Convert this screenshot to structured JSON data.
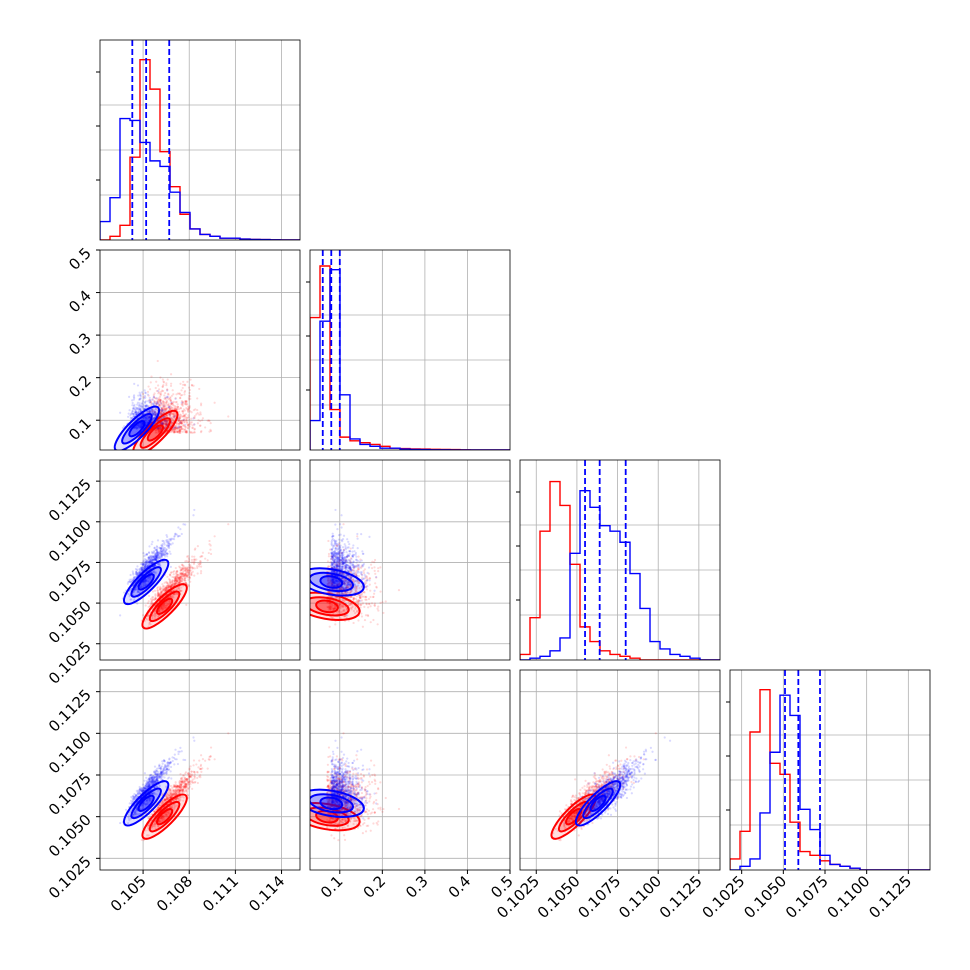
{
  "chart_data": {
    "type": "scatter",
    "subtype": "corner-plot",
    "grid": true,
    "colors": {
      "series_a": "#0000ff",
      "series_b": "#ff0000"
    },
    "quantile_lines": {
      "style": "dashed",
      "color": "#0000ff"
    },
    "variables": [
      {
        "range": [
          0.1022,
          0.1152
        ],
        "ticks": [
          0.105,
          0.108,
          0.111,
          0.114
        ],
        "tick_labels": [
          "0.105",
          "0.108",
          "0.111",
          "0.114"
        ]
      },
      {
        "range": [
          0.03,
          0.5
        ],
        "ticks": [
          0.1,
          0.2,
          0.3,
          0.4,
          0.5
        ],
        "tick_labels": [
          "0.1",
          "0.2",
          "0.3",
          "0.4",
          "0.5"
        ]
      },
      {
        "range": [
          0.1015,
          0.1138
        ],
        "ticks": [
          0.1025,
          0.105,
          0.1075,
          0.11,
          0.1125
        ],
        "tick_labels": [
          "0.1025",
          "0.1050",
          "0.1075",
          "0.1100",
          "0.1125"
        ]
      },
      {
        "range": [
          0.1018,
          0.1138
        ],
        "ticks": [
          0.1025,
          0.105,
          0.1075,
          0.11,
          0.1125
        ],
        "tick_labels": [
          "0.1025",
          "0.1050",
          "0.1075",
          "0.1100",
          "0.1125"
        ]
      }
    ],
    "diagonal_quantiles": [
      [
        0.1043,
        0.1052,
        0.1067
      ],
      [
        0.06,
        0.08,
        0.1
      ],
      [
        0.1055,
        0.1064,
        0.108
      ],
      [
        0.1051,
        0.1059,
        0.1072
      ]
    ],
    "histograms": [
      {
        "bin_start": 0.1022,
        "bin_width": 0.00065,
        "blue": [
          0.1,
          0.23,
          0.66,
          0.65,
          0.53,
          0.43,
          0.4,
          0.26,
          0.15,
          0.06,
          0.03,
          0.02,
          0.01,
          0.01,
          0.005,
          0.003,
          0.002,
          0.001,
          0.0,
          0.0
        ],
        "red": [
          0.0,
          0.02,
          0.08,
          0.45,
          0.98,
          0.82,
          0.48,
          0.29,
          0.14,
          0.06,
          0.03,
          0.02,
          0.01,
          0.01,
          0.005,
          0.003,
          0.002,
          0.001,
          0.0,
          0.0
        ]
      },
      {
        "bin_start": 0.03,
        "bin_width": 0.0235,
        "blue": [
          0.16,
          0.7,
          0.98,
          0.3,
          0.06,
          0.03,
          0.02,
          0.01,
          0.01,
          0.005,
          0.003,
          0.002,
          0.001,
          0.001,
          0.0,
          0.0,
          0.0,
          0.0,
          0.0,
          0.0
        ],
        "red": [
          0.72,
          1.0,
          0.22,
          0.07,
          0.05,
          0.04,
          0.03,
          0.02,
          0.01,
          0.008,
          0.006,
          0.005,
          0.004,
          0.003,
          0.002,
          0.001,
          0.0,
          0.0,
          0.0,
          0.0
        ]
      },
      {
        "bin_start": 0.1015,
        "bin_width": 0.000615,
        "blue": [
          0.0,
          0.01,
          0.02,
          0.05,
          0.12,
          0.58,
          0.92,
          0.83,
          0.73,
          0.7,
          0.64,
          0.47,
          0.28,
          0.1,
          0.06,
          0.03,
          0.02,
          0.01,
          0.0,
          0.0
        ],
        "red": [
          0.03,
          0.23,
          0.7,
          0.97,
          0.84,
          0.52,
          0.18,
          0.1,
          0.05,
          0.03,
          0.02,
          0.01,
          0.0,
          0.0,
          0.0,
          0.0,
          0.0,
          0.0,
          0.0,
          0.0
        ]
      },
      {
        "bin_start": 0.1018,
        "bin_width": 0.0006,
        "blue": [
          0.0,
          0.02,
          0.06,
          0.31,
          0.64,
          0.95,
          0.84,
          0.33,
          0.22,
          0.08,
          0.03,
          0.02,
          0.01,
          0.0,
          0.0,
          0.0,
          0.0,
          0.0,
          0.0,
          0.0
        ],
        "red": [
          0.06,
          0.21,
          0.75,
          0.98,
          0.58,
          0.52,
          0.26,
          0.1,
          0.08,
          0.05,
          0.03,
          0.02,
          0.01,
          0.0,
          0.0,
          0.0,
          0.0,
          0.0,
          0.0,
          0.0
        ]
      }
    ],
    "pair_distributions": {
      "blue_center": [
        0.1046,
        0.08,
        0.1063,
        0.1058
      ],
      "red_center": [
        0.1058,
        0.07,
        0.1048,
        0.105
      ]
    }
  }
}
